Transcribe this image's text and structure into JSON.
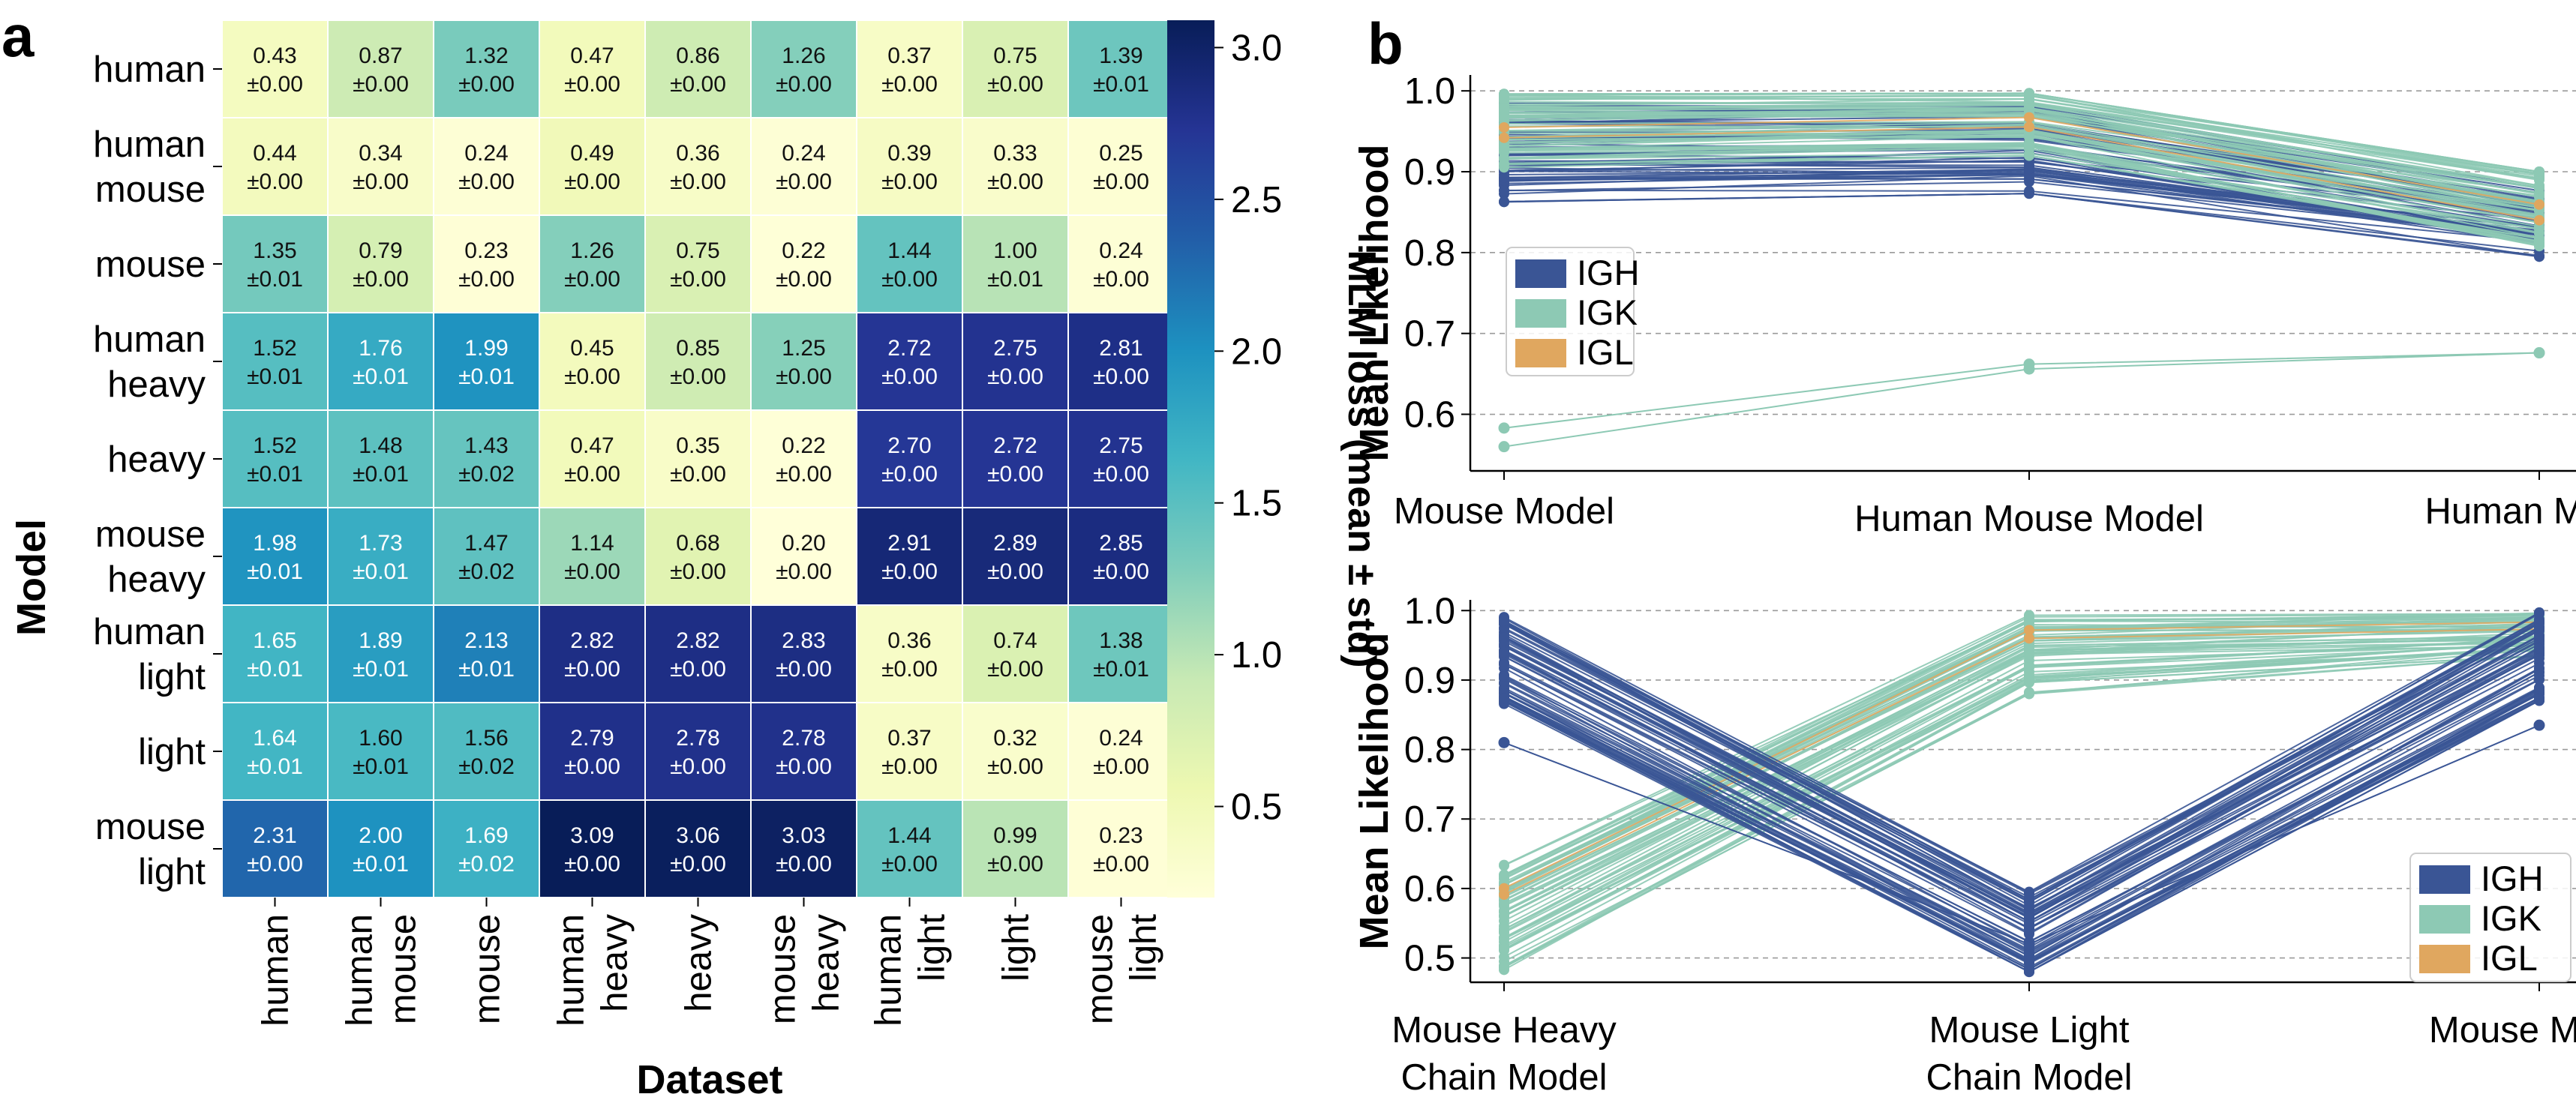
{
  "chart_data": [
    {
      "panel": "a",
      "type": "heatmap",
      "ylabel": "Model",
      "xlabel": "Dataset",
      "colorbar_label": "MLM loss (mean ± std)",
      "colorbar_ticks": [
        "3.0",
        "2.5",
        "2.0",
        "1.5",
        "1.0",
        "0.5"
      ],
      "colorbar_tick_values": [
        3.0,
        2.5,
        2.0,
        1.5,
        1.0,
        0.5
      ],
      "color_range": [
        0.2,
        3.09
      ],
      "colormap": [
        "#ffffd9",
        "#edf8b1",
        "#c7e9b4",
        "#7fcdbb",
        "#41b6c4",
        "#1d91c0",
        "#225ea8",
        "#253494",
        "#081d58"
      ],
      "rows": [
        [
          "human"
        ],
        [
          "human",
          "mouse"
        ],
        [
          "mouse"
        ],
        [
          "human",
          "heavy"
        ],
        [
          "heavy"
        ],
        [
          "mouse",
          "heavy"
        ],
        [
          "human",
          "light"
        ],
        [
          "light"
        ],
        [
          "mouse",
          "light"
        ]
      ],
      "columns": [
        [
          "human"
        ],
        [
          "human",
          "mouse"
        ],
        [
          "mouse"
        ],
        [
          "human",
          "heavy"
        ],
        [
          "heavy"
        ],
        [
          "mouse",
          "heavy"
        ],
        [
          "human",
          "light"
        ],
        [
          "light"
        ],
        [
          "mouse",
          "light"
        ]
      ],
      "means": [
        [
          0.43,
          0.87,
          1.32,
          0.47,
          0.86,
          1.26,
          0.37,
          0.75,
          1.39
        ],
        [
          0.44,
          0.34,
          0.24,
          0.49,
          0.36,
          0.24,
          0.39,
          0.33,
          0.25
        ],
        [
          1.35,
          0.79,
          0.23,
          1.26,
          0.75,
          0.22,
          1.44,
          1.0,
          0.24
        ],
        [
          1.52,
          1.76,
          1.99,
          0.45,
          0.85,
          1.25,
          2.72,
          2.75,
          2.81
        ],
        [
          1.52,
          1.48,
          1.43,
          0.47,
          0.35,
          0.22,
          2.7,
          2.72,
          2.75
        ],
        [
          1.98,
          1.73,
          1.47,
          1.14,
          0.68,
          0.2,
          2.91,
          2.89,
          2.85
        ],
        [
          1.65,
          1.89,
          2.13,
          2.82,
          2.82,
          2.83,
          0.36,
          0.74,
          1.38
        ],
        [
          1.64,
          1.6,
          1.56,
          2.79,
          2.78,
          2.78,
          0.37,
          0.32,
          0.24
        ],
        [
          2.31,
          2.0,
          1.69,
          3.09,
          3.06,
          3.03,
          1.44,
          0.99,
          0.23
        ]
      ],
      "mean_labels": [
        [
          "0.43",
          "0.87",
          "1.32",
          "0.47",
          "0.86",
          "1.26",
          "0.37",
          "0.75",
          "1.39"
        ],
        [
          "0.44",
          "0.34",
          "0.24",
          "0.49",
          "0.36",
          "0.24",
          "0.39",
          "0.33",
          "0.25"
        ],
        [
          "1.35",
          "0.79",
          "0.23",
          "1.26",
          "0.75",
          "0.22",
          "1.44",
          "1.00",
          "0.24"
        ],
        [
          "1.52",
          "1.76",
          "1.99",
          "0.45",
          "0.85",
          "1.25",
          "2.72",
          "2.75",
          "2.81"
        ],
        [
          "1.52",
          "1.48",
          "1.43",
          "0.47",
          "0.35",
          "0.22",
          "2.70",
          "2.72",
          "2.75"
        ],
        [
          "1.98",
          "1.73",
          "1.47",
          "1.14",
          "0.68",
          "0.20",
          "2.91",
          "2.89",
          "2.85"
        ],
        [
          "1.65",
          "1.89",
          "2.13",
          "2.82",
          "2.82",
          "2.83",
          "0.36",
          "0.74",
          "1.38"
        ],
        [
          "1.64",
          "1.60",
          "1.56",
          "2.79",
          "2.78",
          "2.78",
          "0.37",
          "0.32",
          "0.24"
        ],
        [
          "2.31",
          "2.00",
          "1.69",
          "3.09",
          "3.06",
          "3.03",
          "1.44",
          "0.99",
          "0.23"
        ]
      ],
      "stds": [
        [
          "±0.00",
          "±0.00",
          "±0.00",
          "±0.00",
          "±0.00",
          "±0.00",
          "±0.00",
          "±0.00",
          "±0.01"
        ],
        [
          "±0.00",
          "±0.00",
          "±0.00",
          "±0.00",
          "±0.00",
          "±0.00",
          "±0.00",
          "±0.00",
          "±0.00"
        ],
        [
          "±0.01",
          "±0.00",
          "±0.00",
          "±0.00",
          "±0.00",
          "±0.00",
          "±0.00",
          "±0.01",
          "±0.00"
        ],
        [
          "±0.01",
          "±0.01",
          "±0.01",
          "±0.00",
          "±0.00",
          "±0.00",
          "±0.00",
          "±0.00",
          "±0.00"
        ],
        [
          "±0.01",
          "±0.01",
          "±0.02",
          "±0.00",
          "±0.00",
          "±0.00",
          "±0.00",
          "±0.00",
          "±0.00"
        ],
        [
          "±0.01",
          "±0.01",
          "±0.02",
          "±0.00",
          "±0.00",
          "±0.00",
          "±0.00",
          "±0.00",
          "±0.00"
        ],
        [
          "±0.01",
          "±0.01",
          "±0.01",
          "±0.00",
          "±0.00",
          "±0.00",
          "±0.00",
          "±0.00",
          "±0.01"
        ],
        [
          "±0.01",
          "±0.01",
          "±0.02",
          "±0.00",
          "±0.00",
          "±0.00",
          "±0.00",
          "±0.00",
          "±0.00"
        ],
        [
          "±0.00",
          "±0.01",
          "±0.02",
          "±0.00",
          "±0.00",
          "±0.00",
          "±0.00",
          "±0.00",
          "±0.00"
        ]
      ]
    },
    {
      "panel": "b",
      "subplot": "top",
      "type": "line",
      "ylabel": "Mean Likelihood",
      "x_categories": [
        [
          "Mouse Model"
        ],
        [
          "Human Mouse Model"
        ],
        [
          "Human Model"
        ]
      ],
      "ylim": [
        0.53,
        1.015
      ],
      "yticks": [
        "1.0",
        "0.9",
        "0.8",
        "0.7",
        "0.6"
      ],
      "ytick_values": [
        1.0,
        0.9,
        0.8,
        0.7,
        0.6
      ],
      "grid": true,
      "legend_position": "middle-left",
      "legend": [
        {
          "label": "IGH",
          "color": "#3a5595"
        },
        {
          "label": "IGK",
          "color": "#8dc9b4"
        },
        {
          "label": "IGL",
          "color": "#e0a75f"
        }
      ],
      "series_summary": [
        {
          "name": "IGH",
          "line_count": 60,
          "start_range": [
            0.862,
            0.985
          ],
          "mid_range": [
            0.873,
            0.985
          ],
          "end_range": [
            0.795,
            0.88
          ]
        },
        {
          "name": "IGK",
          "line_count": 60,
          "start_range": [
            0.905,
            0.997
          ],
          "mid_range": [
            0.92,
            0.997
          ],
          "end_range": [
            0.8,
            0.9
          ]
        },
        {
          "name": "IGL",
          "line_count": 2,
          "start_range": [
            0.94,
            0.965
          ],
          "mid_range": [
            0.955,
            0.975
          ],
          "end_range": [
            0.84,
            0.87
          ]
        }
      ],
      "outliers": [
        {
          "name": "IGK",
          "values": [
            0.583,
            0.662,
            0.676
          ]
        },
        {
          "name": "IGK",
          "values": [
            0.56,
            0.656,
            0.676
          ]
        }
      ]
    },
    {
      "panel": "b",
      "subplot": "bottom",
      "type": "line",
      "ylabel": "Mean Likelihood",
      "x_categories": [
        [
          "Mouse Heavy",
          "Chain Model"
        ],
        [
          "Mouse Light",
          "Chain Model"
        ],
        [
          "Mouse Model"
        ]
      ],
      "ylim": [
        0.465,
        1.01
      ],
      "yticks": [
        "1.0",
        "0.9",
        "0.8",
        "0.7",
        "0.6",
        "0.5"
      ],
      "ytick_values": [
        1.0,
        0.9,
        0.8,
        0.7,
        0.6,
        0.5
      ],
      "grid": true,
      "legend_position": "bottom-right",
      "legend": [
        {
          "label": "IGH",
          "color": "#3a5595"
        },
        {
          "label": "IGK",
          "color": "#8dc9b4"
        },
        {
          "label": "IGL",
          "color": "#e0a75f"
        }
      ],
      "series_summary": [
        {
          "name": "IGH",
          "line_count": 60,
          "start_range": [
            0.865,
            0.997
          ],
          "mid_range": [
            0.48,
            0.595
          ],
          "end_range": [
            0.87,
            0.997
          ]
        },
        {
          "name": "IGK",
          "line_count": 60,
          "start_range": [
            0.48,
            0.635
          ],
          "mid_range": [
            0.88,
            0.997
          ],
          "end_range": [
            0.935,
            0.997
          ]
        },
        {
          "name": "IGL",
          "line_count": 2,
          "start_range": [
            0.59,
            0.61
          ],
          "mid_range": [
            0.96,
            0.985
          ],
          "end_range": [
            0.97,
            0.99
          ]
        }
      ],
      "outliers": [
        {
          "name": "IGH",
          "values": [
            0.81,
            0.52,
            0.835
          ]
        }
      ]
    }
  ],
  "panel_labels": {
    "a": "a",
    "b": "b"
  }
}
